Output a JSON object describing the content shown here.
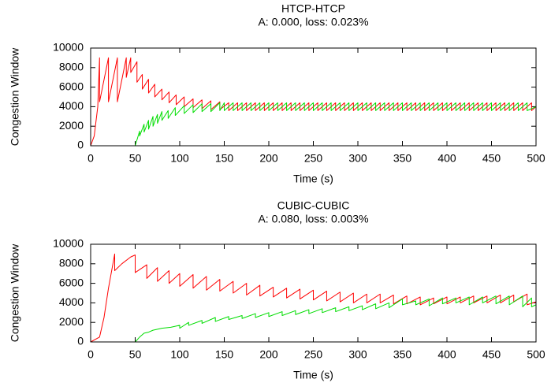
{
  "chart_data": [
    {
      "type": "line",
      "title": "HTCP-HTCP",
      "subtitle": "A: 0.000, loss: 0.023%",
      "x_label": "Time (s)",
      "y_label": "Congestion Window",
      "xlim": [
        0,
        500
      ],
      "ylim": [
        0,
        10000
      ],
      "xticks": [
        0,
        50,
        100,
        150,
        200,
        250,
        300,
        350,
        400,
        450,
        500
      ],
      "yticks": [
        0,
        2000,
        4000,
        6000,
        8000,
        10000
      ],
      "series": [
        {
          "color": "#ff0000",
          "x": [
            0,
            4,
            8,
            10,
            10,
            20,
            20,
            30,
            30,
            40,
            40,
            45,
            45,
            52,
            52,
            58,
            58,
            65,
            65,
            72,
            72,
            80,
            80,
            88,
            88,
            96,
            96,
            105,
            105,
            115,
            115,
            125,
            125,
            135,
            135,
            145,
            145,
            155,
            155,
            165,
            165,
            175,
            175,
            185,
            185,
            195,
            195,
            205,
            205,
            215,
            215,
            225,
            225,
            235,
            235,
            245,
            245,
            255,
            255,
            265,
            265,
            275,
            275,
            285,
            285,
            295,
            295,
            305,
            305,
            315,
            315,
            325,
            325,
            335,
            335,
            345,
            345,
            355,
            355,
            365,
            365,
            375,
            375,
            385,
            385,
            395,
            395,
            405,
            405,
            415,
            415,
            425,
            425,
            435,
            435,
            445,
            445,
            455,
            455,
            465,
            465,
            475,
            475,
            485,
            485,
            495,
            495,
            500
          ],
          "values": [
            0,
            1000,
            4000,
            9000,
            4500,
            9000,
            4500,
            9000,
            4500,
            9000,
            7000,
            9000,
            7500,
            8600,
            6500,
            7300,
            5800,
            6800,
            5400,
            6300,
            5000,
            5800,
            4700,
            5500,
            4400,
            5200,
            4200,
            5000,
            4000,
            4800,
            3900,
            4700,
            3800,
            4600,
            3700,
            4500,
            3700,
            4400,
            3600,
            4400,
            3600,
            4400,
            3600,
            4400,
            3600,
            4400,
            3600,
            4400,
            3600,
            4400,
            3600,
            4400,
            3600,
            4400,
            3600,
            4400,
            3600,
            4400,
            3600,
            4400,
            3600,
            4400,
            3600,
            4400,
            3600,
            4400,
            3600,
            4400,
            3600,
            4400,
            3600,
            4400,
            3600,
            4400,
            3600,
            4400,
            3600,
            4400,
            3600,
            4400,
            3600,
            4400,
            3600,
            4400,
            3600,
            4400,
            3600,
            4400,
            3600,
            4400,
            3600,
            4400,
            3600,
            4400,
            3600,
            4400,
            3600,
            4400,
            3600,
            4400,
            3600,
            4400,
            3600,
            4400,
            3600,
            4400,
            3600,
            4000
          ]
        },
        {
          "color": "#00dd00",
          "x": [
            0,
            50,
            55,
            55,
            60,
            60,
            65,
            65,
            70,
            70,
            75,
            75,
            80,
            80,
            87,
            87,
            95,
            95,
            105,
            105,
            115,
            115,
            125,
            125,
            135,
            135,
            145,
            145,
            150,
            150,
            160,
            160,
            170,
            170,
            180,
            180,
            190,
            190,
            200,
            200,
            210,
            210,
            220,
            220,
            230,
            230,
            240,
            240,
            250,
            250,
            260,
            260,
            270,
            270,
            280,
            280,
            290,
            290,
            300,
            300,
            310,
            310,
            320,
            320,
            330,
            330,
            340,
            340,
            350,
            350,
            360,
            360,
            370,
            370,
            380,
            380,
            390,
            390,
            400,
            400,
            410,
            410,
            420,
            420,
            430,
            430,
            440,
            440,
            450,
            450,
            460,
            460,
            470,
            470,
            480,
            480,
            490,
            490,
            500
          ],
          "values": [
            0,
            0,
            1500,
            1000,
            2200,
            1400,
            2600,
            1700,
            3000,
            2000,
            3200,
            2300,
            3500,
            2600,
            3600,
            2800,
            3900,
            3100,
            4100,
            3300,
            4200,
            3400,
            4300,
            3500,
            4300,
            3500,
            4400,
            3600,
            4400,
            3600,
            4400,
            3600,
            4400,
            3600,
            4400,
            3600,
            4400,
            3600,
            4400,
            3600,
            4400,
            3600,
            4400,
            3600,
            4400,
            3600,
            4400,
            3600,
            4400,
            3600,
            4400,
            3600,
            4400,
            3600,
            4400,
            3600,
            4400,
            3600,
            4400,
            3600,
            4400,
            3600,
            4400,
            3600,
            4400,
            3600,
            4400,
            3600,
            4400,
            3600,
            4400,
            3600,
            4400,
            3600,
            4400,
            3600,
            4400,
            3600,
            4400,
            3600,
            4400,
            3600,
            4400,
            3600,
            4400,
            3600,
            4400,
            3600,
            4400,
            3600,
            4400,
            3600,
            4400,
            3600,
            4400,
            3600,
            4400,
            3600,
            4000
          ]
        }
      ]
    },
    {
      "type": "line",
      "title": "CUBIC-CUBIC",
      "subtitle": "A: 0.080, loss: 0.003%",
      "x_label": "Time (s)",
      "y_label": "Congestion Window",
      "xlim": [
        0,
        500
      ],
      "ylim": [
        0,
        10000
      ],
      "xticks": [
        0,
        50,
        100,
        150,
        200,
        250,
        300,
        350,
        400,
        450,
        500
      ],
      "yticks": [
        0,
        2000,
        4000,
        6000,
        8000,
        10000
      ],
      "series": [
        {
          "color": "#ff0000",
          "x": [
            0,
            10,
            15,
            20,
            25,
            27,
            27,
            35,
            45,
            50,
            50,
            63,
            63,
            75,
            75,
            88,
            88,
            100,
            100,
            115,
            115,
            130,
            130,
            145,
            145,
            160,
            160,
            175,
            175,
            190,
            190,
            205,
            205,
            220,
            220,
            235,
            235,
            250,
            250,
            265,
            265,
            280,
            280,
            295,
            295,
            310,
            310,
            325,
            325,
            340,
            340,
            355,
            355,
            370,
            370,
            385,
            385,
            400,
            400,
            415,
            415,
            430,
            430,
            445,
            445,
            460,
            460,
            475,
            475,
            490,
            490,
            500
          ],
          "values": [
            0,
            500,
            2500,
            5500,
            8000,
            9000,
            7300,
            8000,
            8700,
            8900,
            7100,
            7900,
            6500,
            7600,
            6200,
            7300,
            6000,
            7000,
            5700,
            6900,
            5500,
            6700,
            5300,
            6400,
            5200,
            6200,
            5000,
            6000,
            4800,
            5800,
            4700,
            5600,
            4600,
            5500,
            4500,
            5400,
            4400,
            5300,
            4300,
            5200,
            4200,
            5100,
            4100,
            5000,
            4000,
            4900,
            4000,
            4900,
            4000,
            4800,
            3900,
            4700,
            3900,
            4600,
            3800,
            4500,
            3900,
            4600,
            3900,
            4600,
            4000,
            4700,
            4000,
            4700,
            4000,
            4800,
            4000,
            4800,
            4100,
            4900,
            3800,
            4100
          ]
        },
        {
          "color": "#00dd00",
          "x": [
            0,
            50,
            55,
            60,
            65,
            70,
            80,
            90,
            100,
            100,
            110,
            110,
            125,
            125,
            140,
            140,
            155,
            155,
            170,
            170,
            185,
            185,
            200,
            200,
            215,
            215,
            230,
            230,
            245,
            245,
            260,
            260,
            275,
            275,
            290,
            290,
            305,
            305,
            320,
            320,
            335,
            335,
            350,
            350,
            365,
            365,
            380,
            380,
            395,
            395,
            410,
            410,
            425,
            425,
            440,
            440,
            455,
            455,
            470,
            470,
            485,
            485,
            495,
            495,
            500
          ],
          "values": [
            0,
            0,
            500,
            900,
            1000,
            1200,
            1400,
            1500,
            1700,
            1400,
            2000,
            1700,
            2200,
            1900,
            2500,
            2100,
            2600,
            2300,
            2700,
            2400,
            2900,
            2500,
            3000,
            2600,
            3100,
            2700,
            3200,
            2800,
            3300,
            2900,
            3400,
            3000,
            3500,
            3100,
            3600,
            3200,
            3700,
            3300,
            3900,
            3400,
            4000,
            3500,
            4400,
            3800,
            4200,
            3800,
            4400,
            3700,
            4500,
            3900,
            4500,
            4000,
            4600,
            3800,
            4600,
            4000,
            4700,
            3900,
            4700,
            3800,
            4700,
            3600,
            4500,
            3600,
            3800
          ]
        }
      ]
    }
  ]
}
